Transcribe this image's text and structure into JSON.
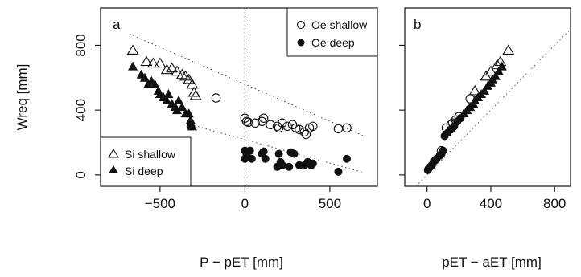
{
  "chart_data": [
    {
      "panel": "a",
      "type": "scatter",
      "xlabel": "P − pET [mm]",
      "ylabel": "Wreq [mm]",
      "xlim": [
        -850,
        780
      ],
      "ylim": [
        -70,
        1030
      ],
      "xticks": [
        -500,
        0,
        500
      ],
      "xtick_labels": [
        "−500",
        "0",
        "500"
      ],
      "yticks": [
        0,
        400,
        800
      ],
      "ytick_labels": [
        "0",
        "400",
        "800"
      ],
      "vline_x": 0,
      "legends": [
        {
          "position": "top-right",
          "entries": [
            {
              "label": "Oe shallow",
              "marker": "open-circle"
            },
            {
              "label": "Oe deep",
              "marker": "filled-circle"
            }
          ]
        },
        {
          "position": "bottom-left",
          "entries": [
            {
              "label": "Si shallow",
              "marker": "open-triangle"
            },
            {
              "label": "Si deep",
              "marker": "filled-triangle"
            }
          ]
        }
      ],
      "series": [
        {
          "name": "Oe shallow",
          "marker": "open-circle",
          "points": [
            [
              -170,
              475
            ],
            [
              0,
              350
            ],
            [
              10,
              330
            ],
            [
              20,
              325
            ],
            [
              60,
              320
            ],
            [
              100,
              330
            ],
            [
              110,
              350
            ],
            [
              150,
              310
            ],
            [
              190,
              300
            ],
            [
              200,
              290
            ],
            [
              220,
              320
            ],
            [
              250,
              300
            ],
            [
              280,
              310
            ],
            [
              300,
              290
            ],
            [
              320,
              280
            ],
            [
              350,
              265
            ],
            [
              360,
              250
            ],
            [
              380,
              290
            ],
            [
              400,
              300
            ],
            [
              550,
              285
            ],
            [
              600,
              290
            ]
          ]
        },
        {
          "name": "Oe deep",
          "marker": "filled-circle",
          "points": [
            [
              -320,
              300
            ],
            [
              0,
              150
            ],
            [
              0,
              100
            ],
            [
              10,
              125
            ],
            [
              30,
              150
            ],
            [
              40,
              100
            ],
            [
              100,
              130
            ],
            [
              110,
              145
            ],
            [
              120,
              100
            ],
            [
              190,
              50
            ],
            [
              200,
              130
            ],
            [
              210,
              80
            ],
            [
              220,
              60
            ],
            [
              260,
              50
            ],
            [
              270,
              140
            ],
            [
              290,
              130
            ],
            [
              320,
              60
            ],
            [
              350,
              60
            ],
            [
              370,
              80
            ],
            [
              390,
              60
            ],
            [
              400,
              70
            ],
            [
              550,
              20
            ],
            [
              600,
              100
            ]
          ]
        },
        {
          "name": "Si shallow",
          "marker": "open-triangle",
          "points": [
            [
              -660,
              770
            ],
            [
              -580,
              700
            ],
            [
              -540,
              690
            ],
            [
              -500,
              690
            ],
            [
              -460,
              650
            ],
            [
              -430,
              660
            ],
            [
              -400,
              640
            ],
            [
              -370,
              620
            ],
            [
              -350,
              610
            ],
            [
              -330,
              590
            ],
            [
              -310,
              560
            ],
            [
              -300,
              510
            ],
            [
              -290,
              490
            ]
          ]
        },
        {
          "name": "Si deep",
          "marker": "filled-triangle",
          "points": [
            [
              -660,
              670
            ],
            [
              -610,
              620
            ],
            [
              -590,
              600
            ],
            [
              -570,
              560
            ],
            [
              -550,
              580
            ],
            [
              -530,
              560
            ],
            [
              -510,
              520
            ],
            [
              -500,
              500
            ],
            [
              -480,
              480
            ],
            [
              -460,
              460
            ],
            [
              -450,
              500
            ],
            [
              -430,
              440
            ],
            [
              -410,
              420
            ],
            [
              -400,
              400
            ],
            [
              -390,
              460
            ],
            [
              -370,
              420
            ],
            [
              -350,
              380
            ],
            [
              -330,
              380
            ],
            [
              -320,
              340
            ],
            [
              -310,
              300
            ]
          ]
        }
      ],
      "fit_lines": [
        {
          "from": [
            -680,
            870
          ],
          "to": [
            700,
            240
          ]
        },
        {
          "from": [
            -300,
            305
          ],
          "to": [
            700,
            15
          ]
        }
      ]
    },
    {
      "panel": "b",
      "type": "scatter",
      "xlabel": "pET − aET [mm]",
      "ylabel": "",
      "xlim": [
        -140,
        900
      ],
      "ylim": [
        -70,
        1030
      ],
      "xticks": [
        0,
        400,
        800
      ],
      "xtick_labels": [
        "0",
        "400",
        "800"
      ],
      "one_to_one_line": true,
      "series": [
        {
          "name": "Si shallow",
          "marker": "open-triangle",
          "points": [
            [
              510,
              770
            ],
            [
              460,
              700
            ],
            [
              440,
              680
            ],
            [
              400,
              640
            ],
            [
              370,
              610
            ],
            [
              300,
              520
            ]
          ]
        },
        {
          "name": "Oe shallow",
          "marker": "open-circle",
          "points": [
            [
              270,
              470
            ],
            [
              200,
              360
            ],
            [
              180,
              340
            ],
            [
              160,
              320
            ],
            [
              150,
              310
            ],
            [
              120,
              290
            ],
            [
              90,
              150
            ]
          ]
        },
        {
          "name": "Si deep",
          "marker": "filled-triangle",
          "points": [
            [
              470,
              670
            ],
            [
              450,
              640
            ],
            [
              430,
              610
            ],
            [
              410,
              590
            ],
            [
              400,
              570
            ],
            [
              380,
              550
            ],
            [
              360,
              520
            ],
            [
              340,
              500
            ],
            [
              320,
              480
            ],
            [
              300,
              460
            ],
            [
              290,
              440
            ],
            [
              270,
              420
            ],
            [
              250,
              400
            ],
            [
              230,
              380
            ]
          ]
        },
        {
          "name": "Oe deep",
          "marker": "filled-circle",
          "points": [
            [
              210,
              350
            ],
            [
              190,
              330
            ],
            [
              170,
              300
            ],
            [
              150,
              280
            ],
            [
              130,
              260
            ],
            [
              110,
              240
            ],
            [
              100,
              150
            ],
            [
              90,
              130
            ],
            [
              80,
              120
            ],
            [
              60,
              100
            ],
            [
              50,
              90
            ],
            [
              40,
              80
            ],
            [
              30,
              60
            ],
            [
              20,
              50
            ],
            [
              10,
              40
            ],
            [
              5,
              30
            ]
          ]
        }
      ]
    }
  ]
}
